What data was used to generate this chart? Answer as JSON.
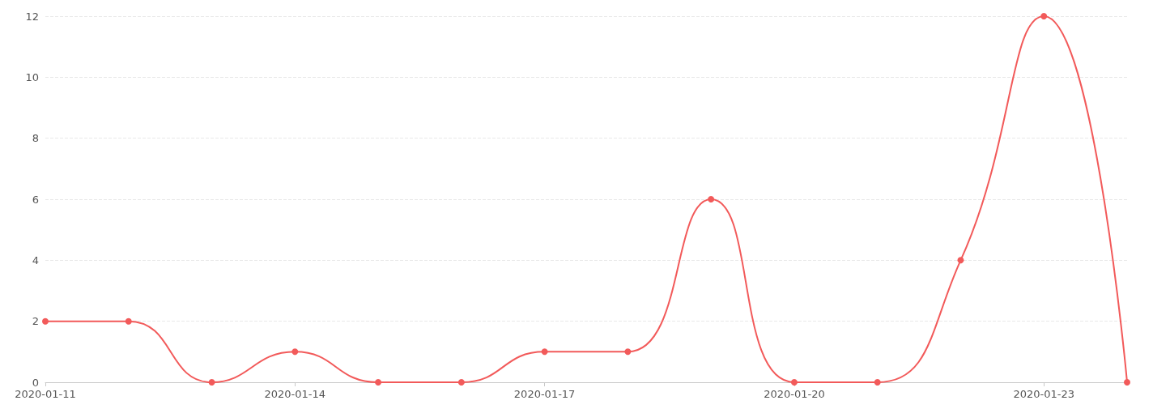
{
  "chart_data": {
    "type": "line",
    "categories": [
      "2020-01-11",
      null,
      null,
      "2020-01-14",
      null,
      null,
      "2020-01-17",
      null,
      null,
      "2020-01-20",
      null,
      null,
      "2020-01-23",
      null
    ],
    "series": [
      {
        "color": "#f25a5a",
        "values": [
          2,
          2,
          0,
          1,
          0,
          0,
          1,
          1,
          6,
          0,
          0,
          4,
          12,
          0
        ]
      }
    ],
    "ylim": [
      0,
      12
    ],
    "yticks": [
      0,
      2,
      4,
      6,
      8,
      10,
      12
    ],
    "grid": "y",
    "marker": "circle",
    "line_style": "solid"
  }
}
